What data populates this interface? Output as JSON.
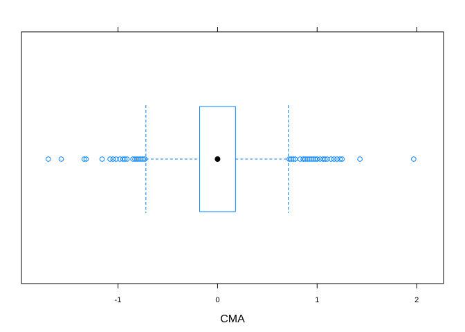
{
  "chart_data": {
    "type": "boxplot",
    "xlabel": "CMA",
    "xlim": [
      -1.97,
      2.27
    ],
    "ticks": [
      -1,
      0,
      1,
      2
    ],
    "tick_labels": [
      "-1",
      "0",
      "1",
      "2"
    ],
    "grid": false,
    "color": "#0080ff",
    "median_color": "#000000",
    "box": {
      "median": 0.0,
      "q1": -0.18,
      "q3": 0.18,
      "whisker_low": -0.72,
      "whisker_high": 0.71
    },
    "outliers": [
      -1.7,
      -1.57,
      -1.34,
      -1.32,
      -1.16,
      -1.08,
      -1.05,
      -1.02,
      -0.98,
      -0.95,
      -0.93,
      -0.91,
      -0.85,
      -0.83,
      -0.81,
      -0.79,
      -0.77,
      -0.75,
      -0.73,
      0.72,
      0.74,
      0.76,
      0.78,
      0.83,
      0.86,
      0.88,
      0.9,
      0.92,
      0.94,
      0.96,
      0.98,
      1.0,
      1.03,
      1.06,
      1.08,
      1.1,
      1.14,
      1.17,
      1.2,
      1.23,
      1.25,
      1.43,
      1.97
    ]
  }
}
